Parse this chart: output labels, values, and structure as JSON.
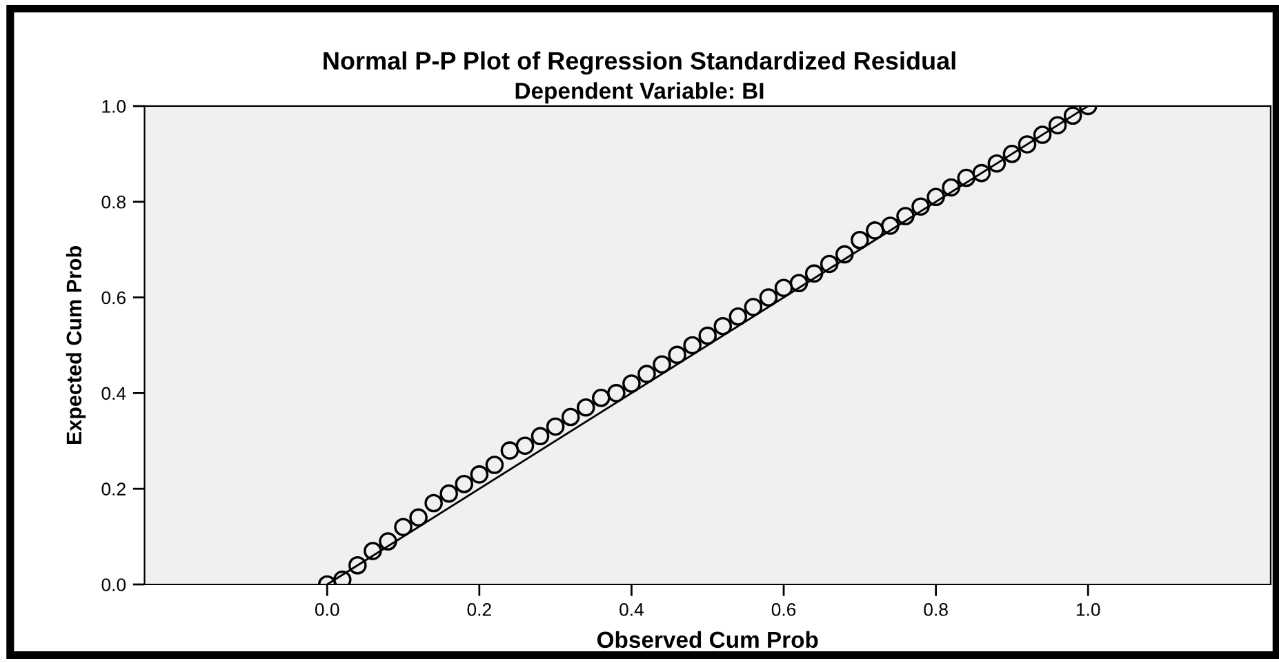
{
  "chart_data": {
    "type": "scatter",
    "title": "Normal P-P Plot of Regression Standardized Residual",
    "subtitle": "Dependent Variable: BI",
    "xlabel": "Observed Cum Prob",
    "ylabel": "Expected Cum Prob",
    "series": [
      {
        "color": "#000000",
        "marker": "circle",
        "x": [
          0.0,
          0.02,
          0.04,
          0.06,
          0.08,
          0.1,
          0.12,
          0.14,
          0.16,
          0.18,
          0.2,
          0.22,
          0.24,
          0.26,
          0.28,
          0.3,
          0.32,
          0.34,
          0.36,
          0.38,
          0.4,
          0.42,
          0.44,
          0.46,
          0.48,
          0.5,
          0.52,
          0.54,
          0.56,
          0.58,
          0.6,
          0.62,
          0.64,
          0.66,
          0.68,
          0.7,
          0.72,
          0.74,
          0.76,
          0.78,
          0.8,
          0.82,
          0.84,
          0.86,
          0.88,
          0.9,
          0.92,
          0.94,
          0.96,
          0.98,
          1.0
        ],
        "values": [
          0.0,
          0.01,
          0.04,
          0.07,
          0.09,
          0.12,
          0.14,
          0.17,
          0.19,
          0.21,
          0.23,
          0.25,
          0.28,
          0.29,
          0.31,
          0.33,
          0.35,
          0.37,
          0.39,
          0.4,
          0.42,
          0.44,
          0.46,
          0.48,
          0.5,
          0.52,
          0.54,
          0.56,
          0.58,
          0.6,
          0.62,
          0.63,
          0.65,
          0.67,
          0.69,
          0.72,
          0.74,
          0.75,
          0.77,
          0.79,
          0.81,
          0.83,
          0.85,
          0.86,
          0.88,
          0.9,
          0.92,
          0.94,
          0.96,
          0.98,
          1.0
        ]
      },
      {
        "type": "line",
        "color": "#000000",
        "marker": "none",
        "line_style": "solid",
        "x": [
          0.0,
          1.0
        ],
        "values": [
          0.0,
          1.0
        ]
      }
    ],
    "xlim": [
      -0.24,
      1.24
    ],
    "ylim": [
      0.0,
      1.0
    ],
    "xticks": [
      {
        "value": 0.0,
        "label": "0.0"
      },
      0.2,
      0.4,
      0.6,
      0.8,
      {
        "value": 1.0,
        "label": "1.0"
      }
    ],
    "yticks": [
      {
        "value": 0.0,
        "label": "0.0"
      },
      0.2,
      0.4,
      0.6,
      0.8,
      {
        "value": 1.0,
        "label": "1.0"
      }
    ],
    "grid": false,
    "legend": false
  }
}
